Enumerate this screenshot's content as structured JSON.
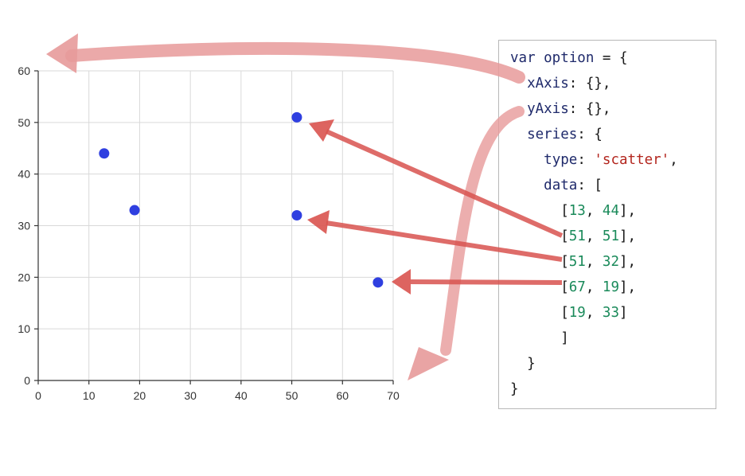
{
  "chart_data": {
    "type": "scatter",
    "x_ticks": [
      "0",
      "10",
      "20",
      "30",
      "40",
      "50",
      "60",
      "70"
    ],
    "y_ticks": [
      "0",
      "10",
      "20",
      "30",
      "40",
      "50",
      "60"
    ],
    "xlim": [
      0,
      70
    ],
    "ylim": [
      0,
      60
    ],
    "grid": true,
    "point_color": "#2f3fe0",
    "points": [
      {
        "x": 13,
        "y": 44
      },
      {
        "x": 51,
        "y": 51
      },
      {
        "x": 51,
        "y": 32
      },
      {
        "x": 67,
        "y": 19
      },
      {
        "x": 19,
        "y": 33
      }
    ]
  },
  "code": {
    "line1": {
      "kw": "var option",
      "eq": " = {"
    },
    "line2": {
      "key": "xAxis",
      "rest": ": {},"
    },
    "line3": {
      "key": "yAxis",
      "rest": ": {},"
    },
    "line4": {
      "key": "series",
      "rest": ": {"
    },
    "line5": {
      "key": "type",
      "colon": ": ",
      "value": "'scatter'",
      "comma": ","
    },
    "line6": {
      "key": "data",
      "rest": ": ["
    },
    "data_rows": [
      {
        "a": "13",
        "b": "44",
        "close": "],"
      },
      {
        "a": "51",
        "b": "51",
        "close": "],"
      },
      {
        "a": "51",
        "b": "32",
        "close": "],"
      },
      {
        "a": "67",
        "b": "19",
        "close": "],"
      },
      {
        "a": "19",
        "b": "33",
        "close": "]"
      }
    ],
    "close_bracket": "]",
    "close_series": "}",
    "close_option": "}"
  },
  "colors": {
    "arrow": "#d94a4a",
    "arrow_light": "#eea9a9",
    "keyword": "#1f2a6b",
    "number": "#1a8a5a",
    "string": "#b3261e"
  }
}
